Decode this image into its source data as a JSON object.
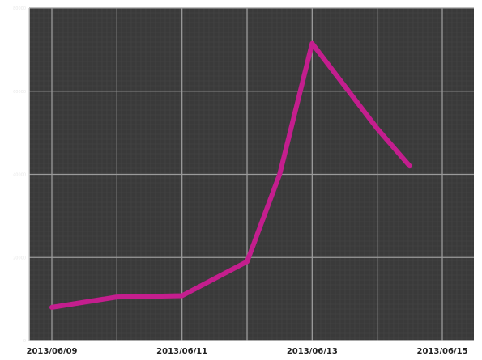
{
  "chart_data": {
    "type": "line",
    "title": "",
    "xlabel": "",
    "ylabel": "",
    "x_tick_labels": [
      "2013/06/09",
      "2013/06/11",
      "2013/06/13",
      "2013/06/15"
    ],
    "y_tick_labels": [
      "0",
      "20000",
      "40000",
      "60000",
      "80000"
    ],
    "ylim": [
      0,
      80000
    ],
    "grid": true,
    "colors": {
      "background": "#3a3a3a",
      "grid": "#9a9a9a",
      "line": "#c41e8e",
      "axis_text": "#222222",
      "y_tick_text": "#e8e8e8"
    },
    "series": [
      {
        "x": [
          "2013/06/09",
          "2013/06/10",
          "2013/06/11",
          "2013/06/12",
          "2013/06/12 12:00",
          "2013/06/13",
          "2013/06/14",
          "2013/06/14 12:00"
        ],
        "values": [
          8000,
          10500,
          10800,
          19000,
          40000,
          71500,
          51000,
          42000
        ]
      }
    ]
  }
}
